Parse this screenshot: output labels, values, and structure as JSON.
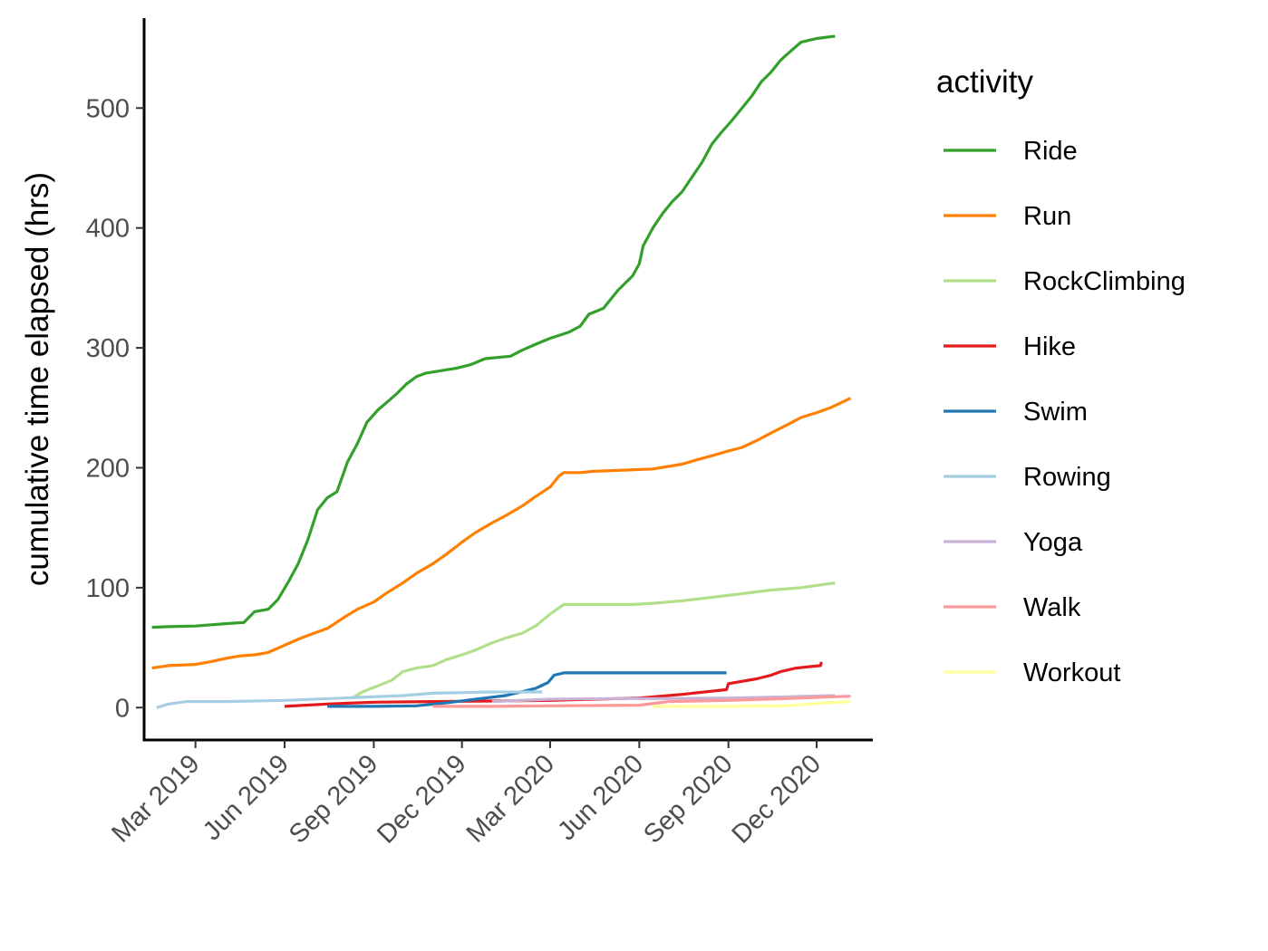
{
  "chart_data": {
    "type": "line",
    "xlabel": "",
    "ylabel": "cumulative time elapsed (hrs)",
    "x_type": "date",
    "xlim": [
      "2019-01-07",
      "2021-01-28"
    ],
    "ylim": [
      -27,
      575
    ],
    "x_ticks": [
      {
        "date": "2019-03-01",
        "label": "Mar 2019"
      },
      {
        "date": "2019-06-01",
        "label": "Jun 2019"
      },
      {
        "date": "2019-09-01",
        "label": "Sep 2019"
      },
      {
        "date": "2019-12-01",
        "label": "Dec 2019"
      },
      {
        "date": "2020-03-01",
        "label": "Mar 2020"
      },
      {
        "date": "2020-06-01",
        "label": "Jun 2020"
      },
      {
        "date": "2020-09-01",
        "label": "Sep 2020"
      },
      {
        "date": "2020-12-01",
        "label": "Dec 2020"
      }
    ],
    "y_ticks": [
      0,
      100,
      200,
      300,
      400,
      500
    ],
    "grid": false,
    "legend": {
      "title": "activity",
      "position": "right"
    },
    "series": [
      {
        "name": "Ride",
        "color": "#33a02c",
        "points": [
          [
            "2019-01-15",
            67
          ],
          [
            "2019-02-01",
            67.5
          ],
          [
            "2019-03-01",
            68
          ],
          [
            "2019-04-01",
            70
          ],
          [
            "2019-04-20",
            71
          ],
          [
            "2019-05-01",
            80
          ],
          [
            "2019-05-15",
            82
          ],
          [
            "2019-05-25",
            90
          ],
          [
            "2019-06-05",
            105
          ],
          [
            "2019-06-15",
            120
          ],
          [
            "2019-06-25",
            140
          ],
          [
            "2019-07-05",
            165
          ],
          [
            "2019-07-15",
            175
          ],
          [
            "2019-07-25",
            180
          ],
          [
            "2019-08-05",
            205
          ],
          [
            "2019-08-15",
            220
          ],
          [
            "2019-08-25",
            238
          ],
          [
            "2019-09-05",
            248
          ],
          [
            "2019-09-15",
            255
          ],
          [
            "2019-09-25",
            262
          ],
          [
            "2019-10-05",
            270
          ],
          [
            "2019-10-15",
            276
          ],
          [
            "2019-10-25",
            279
          ],
          [
            "2019-11-10",
            281
          ],
          [
            "2019-11-25",
            283
          ],
          [
            "2019-12-10",
            286
          ],
          [
            "2019-12-25",
            291
          ],
          [
            "2020-01-20",
            293
          ],
          [
            "2020-02-01",
            298
          ],
          [
            "2020-02-15",
            303
          ],
          [
            "2020-03-01",
            308
          ],
          [
            "2020-03-20",
            313
          ],
          [
            "2020-04-01",
            318
          ],
          [
            "2020-04-10",
            328
          ],
          [
            "2020-04-25",
            333
          ],
          [
            "2020-05-10",
            348
          ],
          [
            "2020-05-25",
            360
          ],
          [
            "2020-06-01",
            370
          ],
          [
            "2020-06-05",
            385
          ],
          [
            "2020-06-15",
            400
          ],
          [
            "2020-06-25",
            412
          ],
          [
            "2020-07-05",
            422
          ],
          [
            "2020-07-15",
            430
          ],
          [
            "2020-07-25",
            442
          ],
          [
            "2020-08-05",
            455
          ],
          [
            "2020-08-15",
            470
          ],
          [
            "2020-08-25",
            480
          ],
          [
            "2020-09-05",
            490
          ],
          [
            "2020-09-15",
            500
          ],
          [
            "2020-09-25",
            510
          ],
          [
            "2020-10-05",
            522
          ],
          [
            "2020-10-15",
            530
          ],
          [
            "2020-10-25",
            540
          ],
          [
            "2020-11-05",
            548
          ],
          [
            "2020-11-15",
            555
          ],
          [
            "2020-12-01",
            558
          ],
          [
            "2020-12-20",
            560
          ]
        ]
      },
      {
        "name": "Run",
        "color": "#ff7f00",
        "points": [
          [
            "2019-01-15",
            33
          ],
          [
            "2019-02-01",
            35
          ],
          [
            "2019-03-01",
            36
          ],
          [
            "2019-03-15",
            38
          ],
          [
            "2019-04-01",
            41
          ],
          [
            "2019-04-15",
            43
          ],
          [
            "2019-05-01",
            44
          ],
          [
            "2019-05-15",
            46
          ],
          [
            "2019-06-01",
            52
          ],
          [
            "2019-06-15",
            57
          ],
          [
            "2019-07-01",
            62
          ],
          [
            "2019-07-15",
            66
          ],
          [
            "2019-08-01",
            75
          ],
          [
            "2019-08-15",
            82
          ],
          [
            "2019-09-01",
            88
          ],
          [
            "2019-09-15",
            96
          ],
          [
            "2019-10-01",
            104
          ],
          [
            "2019-10-15",
            112
          ],
          [
            "2019-11-01",
            120
          ],
          [
            "2019-11-15",
            128
          ],
          [
            "2019-12-01",
            138
          ],
          [
            "2019-12-15",
            146
          ],
          [
            "2020-01-01",
            154
          ],
          [
            "2020-01-15",
            160
          ],
          [
            "2020-02-01",
            168
          ],
          [
            "2020-02-15",
            176
          ],
          [
            "2020-03-01",
            184
          ],
          [
            "2020-03-10",
            193
          ],
          [
            "2020-03-15",
            196
          ],
          [
            "2020-04-01",
            196
          ],
          [
            "2020-04-15",
            197
          ],
          [
            "2020-05-15",
            198
          ],
          [
            "2020-06-15",
            199
          ],
          [
            "2020-07-15",
            203
          ],
          [
            "2020-08-01",
            207
          ],
          [
            "2020-08-15",
            210
          ],
          [
            "2020-09-01",
            214
          ],
          [
            "2020-09-15",
            217
          ],
          [
            "2020-10-01",
            223
          ],
          [
            "2020-10-15",
            229
          ],
          [
            "2020-11-01",
            236
          ],
          [
            "2020-11-15",
            242
          ],
          [
            "2020-12-01",
            246
          ],
          [
            "2020-12-15",
            250
          ],
          [
            "2021-01-05",
            258
          ]
        ]
      },
      {
        "name": "RockClimbing",
        "color": "#b2df8a",
        "points": [
          [
            "2019-08-10",
            8
          ],
          [
            "2019-08-20",
            13
          ],
          [
            "2019-09-05",
            18
          ],
          [
            "2019-09-20",
            23
          ],
          [
            "2019-10-01",
            30
          ],
          [
            "2019-10-15",
            33
          ],
          [
            "2019-11-01",
            35
          ],
          [
            "2019-11-15",
            40
          ],
          [
            "2019-12-01",
            44
          ],
          [
            "2019-12-15",
            48
          ],
          [
            "2020-01-01",
            54
          ],
          [
            "2020-01-15",
            58
          ],
          [
            "2020-02-01",
            62
          ],
          [
            "2020-02-15",
            68
          ],
          [
            "2020-03-01",
            78
          ],
          [
            "2020-03-15",
            86
          ],
          [
            "2020-04-15",
            86
          ],
          [
            "2020-05-25",
            86
          ],
          [
            "2020-06-15",
            87
          ],
          [
            "2020-07-15",
            89
          ],
          [
            "2020-08-15",
            92
          ],
          [
            "2020-09-15",
            95
          ],
          [
            "2020-10-15",
            98
          ],
          [
            "2020-11-15",
            100
          ],
          [
            "2020-12-20",
            104
          ]
        ]
      },
      {
        "name": "Hike",
        "color": "#e31a1c",
        "points": [
          [
            "2019-06-01",
            1
          ],
          [
            "2019-07-15",
            3
          ],
          [
            "2019-09-01",
            4.5
          ],
          [
            "2019-11-01",
            5
          ],
          [
            "2020-01-01",
            5.5
          ],
          [
            "2020-03-01",
            6
          ],
          [
            "2020-06-01",
            8
          ],
          [
            "2020-07-15",
            11
          ],
          [
            "2020-08-30",
            15
          ],
          [
            "2020-09-01",
            20
          ],
          [
            "2020-09-30",
            24
          ],
          [
            "2020-10-15",
            27
          ],
          [
            "2020-10-25",
            30
          ],
          [
            "2020-11-10",
            33
          ],
          [
            "2020-12-05",
            35
          ],
          [
            "2020-12-06",
            38
          ]
        ]
      },
      {
        "name": "Swim",
        "color": "#1f78b4",
        "points": [
          [
            "2019-07-15",
            1
          ],
          [
            "2019-09-01",
            1
          ],
          [
            "2019-10-15",
            1.5
          ],
          [
            "2019-11-15",
            4
          ],
          [
            "2019-12-15",
            7
          ],
          [
            "2020-01-15",
            10
          ],
          [
            "2020-02-15",
            16
          ],
          [
            "2020-02-28",
            21
          ],
          [
            "2020-03-05",
            27
          ],
          [
            "2020-03-15",
            29
          ],
          [
            "2020-05-01",
            29
          ],
          [
            "2020-07-01",
            29
          ],
          [
            "2020-08-30",
            29
          ]
        ]
      },
      {
        "name": "Rowing",
        "color": "#a6cee3",
        "points": [
          [
            "2019-01-20",
            0
          ],
          [
            "2019-02-01",
            3
          ],
          [
            "2019-02-20",
            5
          ],
          [
            "2019-04-01",
            5
          ],
          [
            "2019-06-01",
            6
          ],
          [
            "2019-08-01",
            8
          ],
          [
            "2019-10-01",
            10
          ],
          [
            "2019-11-01",
            12
          ],
          [
            "2019-12-01",
            12.5
          ],
          [
            "2020-01-01",
            13
          ],
          [
            "2020-02-01",
            13
          ],
          [
            "2020-02-22",
            13
          ]
        ]
      },
      {
        "name": "Yoga",
        "color": "#cab2d6",
        "points": [
          [
            "2020-01-01",
            5
          ],
          [
            "2020-03-01",
            7
          ],
          [
            "2020-05-01",
            7.5
          ],
          [
            "2020-07-01",
            7.5
          ],
          [
            "2020-09-01",
            8
          ],
          [
            "2020-11-01",
            9
          ],
          [
            "2020-12-20",
            10
          ]
        ]
      },
      {
        "name": "Walk",
        "color": "#fb9a99",
        "points": [
          [
            "2019-11-01",
            1
          ],
          [
            "2020-01-01",
            1
          ],
          [
            "2020-03-01",
            1.5
          ],
          [
            "2020-06-01",
            2
          ],
          [
            "2020-07-01",
            5
          ],
          [
            "2020-09-01",
            6
          ],
          [
            "2020-11-01",
            7.5
          ],
          [
            "2020-12-01",
            8.5
          ],
          [
            "2021-01-05",
            9.5
          ]
        ]
      },
      {
        "name": "Workout",
        "color": "#ffff99",
        "points": [
          [
            "2020-06-15",
            1
          ],
          [
            "2020-09-01",
            1
          ],
          [
            "2020-11-01",
            1.5
          ],
          [
            "2020-11-25",
            3
          ],
          [
            "2020-12-10",
            4
          ],
          [
            "2021-01-05",
            5
          ]
        ]
      }
    ]
  }
}
